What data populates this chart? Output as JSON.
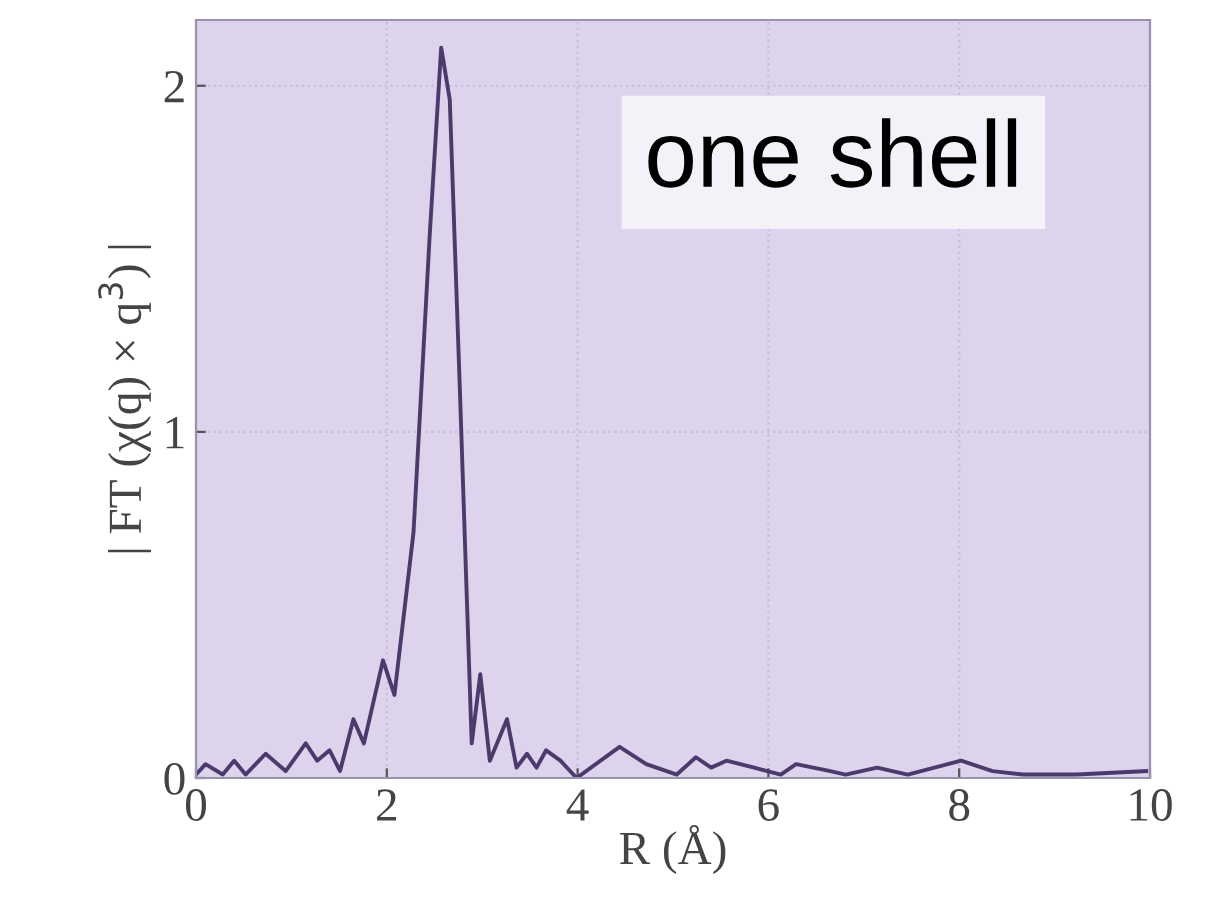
{
  "chart_data": {
    "type": "line",
    "xlabel": "R (Å)",
    "ylabel": "| FT (χ(q) × q$^{3}$) |",
    "annotations": [
      "one shell"
    ],
    "x": [
      0.0,
      0.1,
      0.28,
      0.4,
      0.52,
      0.73,
      0.94,
      1.15,
      1.27,
      1.4,
      1.51,
      1.65,
      1.76,
      1.96,
      2.08,
      2.28,
      2.45,
      2.57,
      2.66,
      2.77,
      2.84,
      2.89,
      2.98,
      3.08,
      3.26,
      3.36,
      3.47,
      3.57,
      3.67,
      3.82,
      3.99,
      4.44,
      4.72,
      5.04,
      5.24,
      5.4,
      5.56,
      5.85,
      6.13,
      6.29,
      6.65,
      6.81,
      7.14,
      7.46,
      8.02,
      8.35,
      8.67,
      9.23,
      9.96
    ],
    "series": [
      {
        "color": "#4b3a6b",
        "values": [
          0.01,
          0.04,
          0.01,
          0.05,
          0.01,
          0.07,
          0.02,
          0.1,
          0.05,
          0.08,
          0.02,
          0.17,
          0.1,
          0.34,
          0.24,
          0.71,
          1.57,
          2.11,
          1.96,
          1.09,
          0.51,
          0.1,
          0.3,
          0.05,
          0.17,
          0.03,
          0.07,
          0.03,
          0.08,
          0.05,
          0.0,
          0.09,
          0.04,
          0.01,
          0.06,
          0.03,
          0.05,
          0.03,
          0.01,
          0.04,
          0.02,
          0.01,
          0.03,
          0.01,
          0.05,
          0.02,
          0.01,
          0.01,
          0.02
        ]
      }
    ],
    "xlim": [
      0,
      10
    ],
    "ylim": [
      0,
      2.19
    ],
    "xticks": [
      0,
      2,
      4,
      6,
      8,
      10
    ],
    "yticks": [
      0,
      1,
      2
    ],
    "grid": true,
    "marker": "none",
    "line_style": "solid"
  }
}
